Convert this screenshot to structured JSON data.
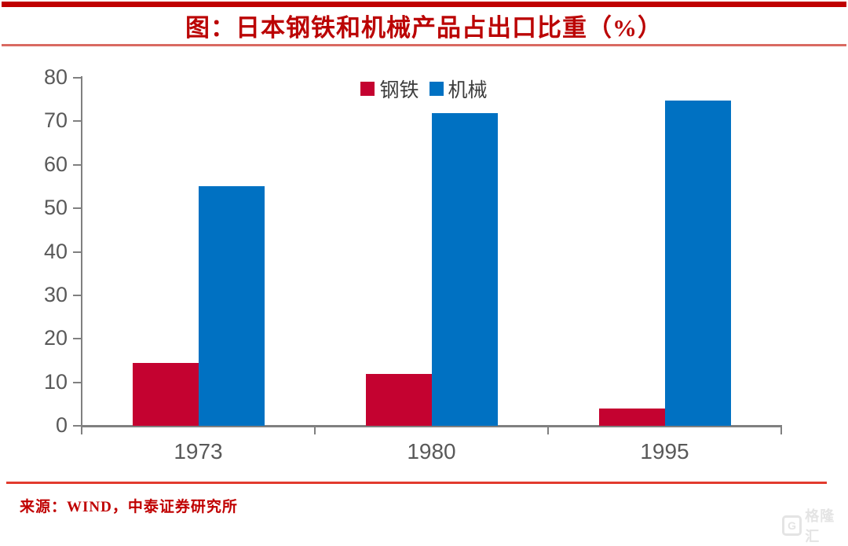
{
  "header": {
    "title": "图：日本钢铁和机械产品占出口比重（%）"
  },
  "chart_data": {
    "type": "bar",
    "title": "图：日本钢铁和机械产品占出口比重（%）",
    "categories": [
      "1973",
      "1980",
      "1995"
    ],
    "series": [
      {
        "key": "steel",
        "name": "钢铁",
        "color": "#c40230",
        "values": [
          14.5,
          11.9,
          4.0
        ]
      },
      {
        "key": "machinery",
        "name": "机械",
        "color": "#0071c2",
        "values": [
          55.1,
          71.9,
          74.8
        ]
      }
    ],
    "ylim": [
      0,
      80
    ],
    "yticks": [
      0,
      10,
      20,
      30,
      40,
      50,
      60,
      70,
      80
    ],
    "xlabel": "",
    "ylabel": "",
    "grid": false,
    "legend_position": "top-center",
    "axis_color": "#808080",
    "tick_label_color": "#595959"
  },
  "footer": {
    "source": "来源：WIND，中泰证券研究所",
    "watermark_icon": "G",
    "watermark_text": "格隆汇"
  },
  "style": {
    "accent_red": "#c00000",
    "title_red": "#bb0404",
    "divider_light_red": "#d96a62",
    "footer_line_red": "#e23b2e",
    "source_red": "#c00000"
  }
}
